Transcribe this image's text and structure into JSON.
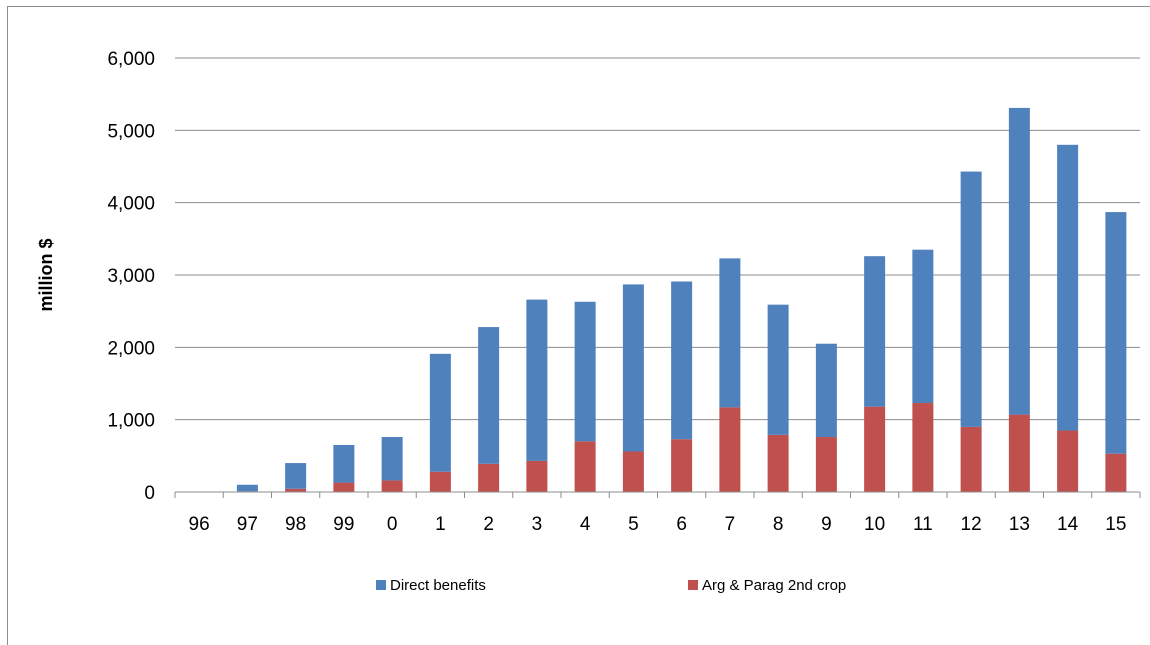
{
  "chart_data": {
    "type": "bar",
    "stacked": true,
    "ylabel": "million $",
    "xlabel": "",
    "ylim": [
      0,
      6000
    ],
    "yticks": [
      0,
      1000,
      2000,
      3000,
      4000,
      5000,
      6000
    ],
    "ytick_labels": [
      "0",
      "1,000",
      "2,000",
      "3,000",
      "4,000",
      "5,000",
      "6,000"
    ],
    "categories": [
      "96",
      "97",
      "98",
      "99",
      "0",
      "1",
      "2",
      "3",
      "4",
      "5",
      "6",
      "7",
      "8",
      "9",
      "10",
      "11",
      "12",
      "13",
      "14",
      "15"
    ],
    "series": [
      {
        "name": "Arg & Parag 2nd crop",
        "color": "#c0504d",
        "values": [
          0,
          10,
          45,
          130,
          160,
          280,
          390,
          430,
          700,
          560,
          730,
          1170,
          790,
          760,
          1180,
          1230,
          900,
          1070,
          850,
          530
        ]
      },
      {
        "name": "Direct benefits",
        "color": "#4f81bd",
        "values": [
          0,
          90,
          355,
          520,
          600,
          1630,
          1890,
          2230,
          1930,
          2310,
          2180,
          2060,
          1800,
          1290,
          2080,
          2120,
          3530,
          4240,
          3950,
          3340
        ]
      }
    ],
    "legend": {
      "position": "bottom",
      "entries": [
        "Direct benefits",
        "Arg & Parag 2nd crop"
      ]
    },
    "grid": true
  }
}
